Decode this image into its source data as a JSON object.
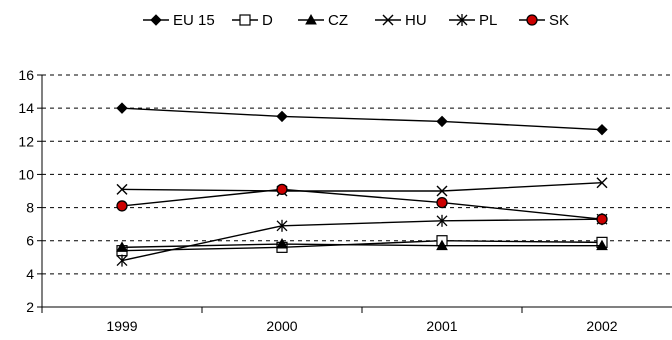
{
  "chart_data": {
    "type": "line",
    "categories": [
      "1999",
      "2000",
      "2001",
      "2002"
    ],
    "ylim": [
      2,
      16
    ],
    "yticks": [
      2,
      4,
      6,
      8,
      10,
      12,
      14,
      16
    ],
    "grid": "horizontal dashed",
    "legend_position": "top",
    "series": [
      {
        "name": "EU 15",
        "marker": "diamond",
        "color": "#000000",
        "values": [
          14.0,
          13.5,
          13.2,
          12.7
        ]
      },
      {
        "name": "D",
        "marker": "square-open",
        "color": "#000000",
        "values": [
          5.4,
          5.6,
          6.0,
          5.9
        ]
      },
      {
        "name": "CZ",
        "marker": "triangle",
        "color": "#000000",
        "values": [
          5.6,
          5.8,
          5.7,
          5.7
        ]
      },
      {
        "name": "HU",
        "marker": "x",
        "color": "#000000",
        "values": [
          9.1,
          9.0,
          9.0,
          9.5
        ]
      },
      {
        "name": "PL",
        "marker": "star",
        "color": "#000000",
        "values": [
          4.8,
          6.9,
          7.2,
          7.3
        ]
      },
      {
        "name": "SK",
        "marker": "circle-red",
        "color": "#000000",
        "marker_fill": "#cc0000",
        "values": [
          8.1,
          9.1,
          8.3,
          7.3
        ]
      }
    ]
  }
}
